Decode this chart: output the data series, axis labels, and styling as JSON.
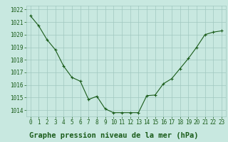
{
  "x": [
    0,
    1,
    2,
    3,
    4,
    5,
    6,
    7,
    8,
    9,
    10,
    11,
    12,
    13,
    14,
    15,
    16,
    17,
    18,
    19,
    20,
    21,
    22,
    23
  ],
  "y": [
    1021.5,
    1020.7,
    1019.6,
    1018.8,
    1017.5,
    1016.6,
    1016.3,
    1014.85,
    1015.1,
    1014.1,
    1013.8,
    1013.8,
    1013.8,
    1013.8,
    1015.15,
    1015.2,
    1016.1,
    1016.5,
    1017.3,
    1018.1,
    1019.0,
    1020.0,
    1020.2,
    1020.3
  ],
  "line_color": "#1a5c1a",
  "marker_color": "#1a5c1a",
  "bg_color": "#c8e8e0",
  "grid_color": "#a0c8c0",
  "label_color": "#1a5c1a",
  "xlabel": "Graphe pression niveau de la mer (hPa)",
  "ylim_min": 1013.5,
  "ylim_max": 1022.3,
  "yticks": [
    1014,
    1015,
    1016,
    1017,
    1018,
    1019,
    1020,
    1021,
    1022
  ],
  "xticks": [
    0,
    1,
    2,
    3,
    4,
    5,
    6,
    7,
    8,
    9,
    10,
    11,
    12,
    13,
    14,
    15,
    16,
    17,
    18,
    19,
    20,
    21,
    22,
    23
  ],
  "tick_fontsize": 5.5,
  "xlabel_fontsize": 7.5
}
